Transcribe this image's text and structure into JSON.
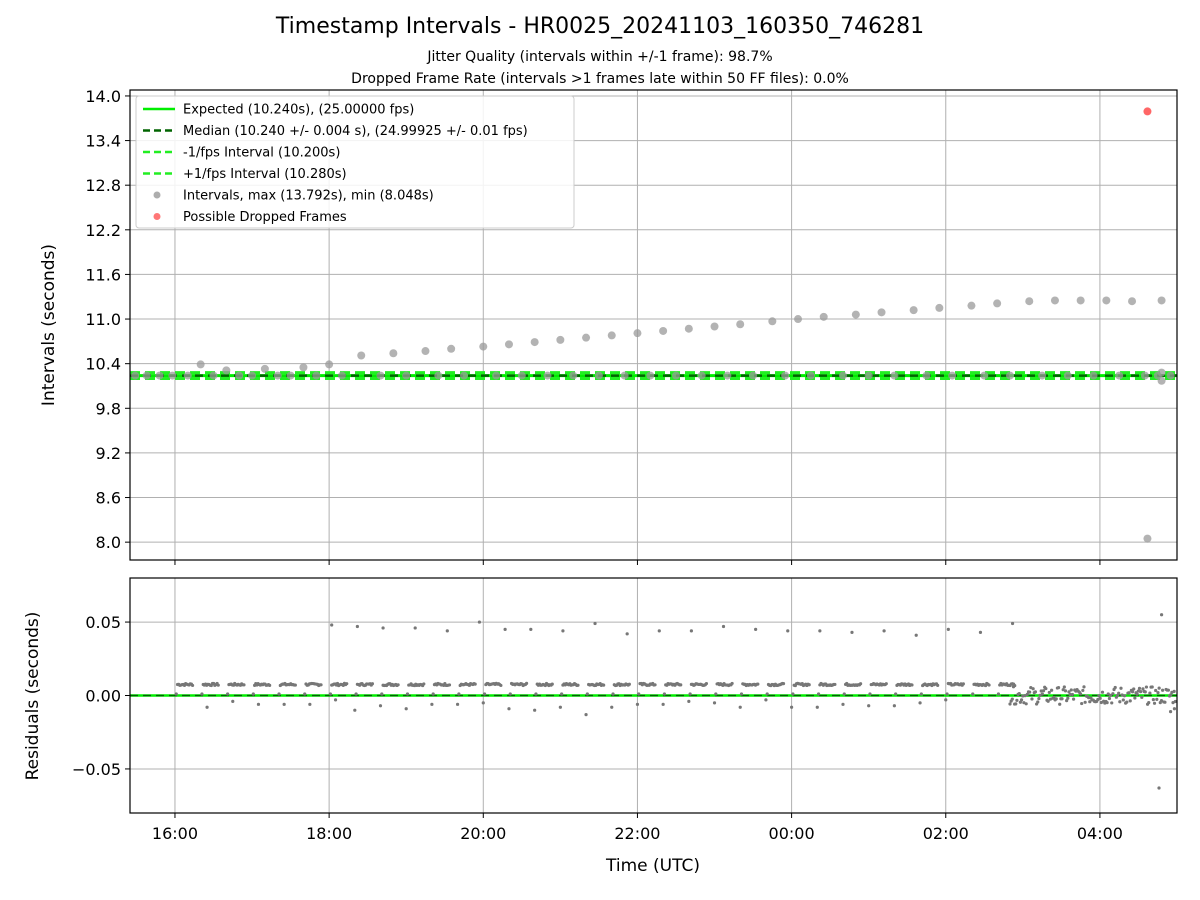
{
  "title": "Timestamp Intervals - HR0025_20241103_160350_746281",
  "subtitle_1": "Jitter Quality (intervals within +/-1 frame): 98.7%",
  "subtitle_2": "Dropped Frame Rate (intervals >1 frames late within 50 FF files): 0.0%",
  "colors": {
    "expected": "#00ee00",
    "median": "#006400",
    "interval_bounds": "#22ee22",
    "intervals": "#999999",
    "dropped": "#ff5555",
    "residuals": "#777777",
    "grid": "#b0b0b0"
  },
  "chart_data": [
    {
      "type": "scatter",
      "panel": "top",
      "ylabel": "Intervals (seconds)",
      "xlabel": "",
      "x_is_time_utc": true,
      "xlim": [
        "15:25",
        "05:00"
      ],
      "ylim": [
        7.76,
        14.08
      ],
      "grid": true,
      "legend_placement": "top-left",
      "x_ticks": [
        "16:00",
        "18:00",
        "20:00",
        "22:00",
        "00:00",
        "02:00",
        "04:00"
      ],
      "y_ticks": [
        "8.0",
        "8.6",
        "9.2",
        "9.8",
        "10.4",
        "11.0",
        "11.6",
        "12.2",
        "12.8",
        "13.4",
        "14.0"
      ],
      "legend": [
        "Expected (10.240s), (25.00000 fps)",
        "Median (10.240 +/- 0.004 s), (24.99925 +/- 0.01 fps)",
        "-1/fps Interval (10.200s)",
        "+1/fps Interval (10.280s)",
        "Intervals, max (13.792s), min (8.048s)",
        "Possible Dropped Frames"
      ],
      "series": [
        {
          "name": "Expected (10.240s), (25.00000 fps)",
          "type": "hline",
          "y": 10.24
        },
        {
          "name": "Median (10.240 +/- 0.004 s), (24.99925 +/- 0.01 fps)",
          "type": "hline",
          "y": 10.24
        },
        {
          "name": "-1/fps Interval (10.200s)",
          "type": "hline",
          "y": 10.2
        },
        {
          "name": "+1/fps Interval (10.280s)",
          "type": "hline",
          "y": 10.28
        },
        {
          "name": "Intervals, max (13.792s), min (8.048s)",
          "points": [
            [
              "15:29",
              10.24
            ],
            [
              "15:38",
              10.24
            ],
            [
              "15:48",
              10.24
            ],
            [
              "15:58",
              10.24
            ],
            [
              "16:10",
              10.24
            ],
            [
              "16:20",
              10.39
            ],
            [
              "16:30",
              10.24
            ],
            [
              "16:40",
              10.31
            ],
            [
              "16:50",
              10.24
            ],
            [
              "17:00",
              10.24
            ],
            [
              "17:10",
              10.33
            ],
            [
              "17:20",
              10.24
            ],
            [
              "17:30",
              10.24
            ],
            [
              "17:40",
              10.35
            ],
            [
              "17:50",
              10.24
            ],
            [
              "18:00",
              10.39
            ],
            [
              "18:10",
              10.24
            ],
            [
              "18:25",
              10.51
            ],
            [
              "18:40",
              10.24
            ],
            [
              "18:50",
              10.54
            ],
            [
              "19:00",
              10.24
            ],
            [
              "19:15",
              10.57
            ],
            [
              "19:25",
              10.24
            ],
            [
              "19:35",
              10.6
            ],
            [
              "19:45",
              10.24
            ],
            [
              "20:00",
              10.63
            ],
            [
              "20:10",
              10.24
            ],
            [
              "20:20",
              10.66
            ],
            [
              "20:30",
              10.24
            ],
            [
              "20:40",
              10.69
            ],
            [
              "20:50",
              10.24
            ],
            [
              "21:00",
              10.72
            ],
            [
              "21:10",
              10.24
            ],
            [
              "21:20",
              10.75
            ],
            [
              "21:30",
              10.24
            ],
            [
              "21:40",
              10.78
            ],
            [
              "21:50",
              10.24
            ],
            [
              "22:00",
              10.81
            ],
            [
              "22:10",
              10.24
            ],
            [
              "22:20",
              10.84
            ],
            [
              "22:30",
              10.24
            ],
            [
              "22:40",
              10.87
            ],
            [
              "22:50",
              10.24
            ],
            [
              "23:00",
              10.9
            ],
            [
              "23:10",
              10.24
            ],
            [
              "23:20",
              10.93
            ],
            [
              "23:30",
              10.24
            ],
            [
              "23:45",
              10.97
            ],
            [
              "23:55",
              10.24
            ],
            [
              "00:05",
              11.0
            ],
            [
              "00:15",
              10.24
            ],
            [
              "00:25",
              11.03
            ],
            [
              "00:40",
              10.24
            ],
            [
              "00:50",
              11.06
            ],
            [
              "01:00",
              10.24
            ],
            [
              "01:10",
              11.09
            ],
            [
              "01:20",
              10.24
            ],
            [
              "01:35",
              11.12
            ],
            [
              "01:45",
              10.24
            ],
            [
              "01:55",
              11.15
            ],
            [
              "02:05",
              10.24
            ],
            [
              "02:20",
              11.18
            ],
            [
              "02:30",
              10.24
            ],
            [
              "02:40",
              11.21
            ],
            [
              "02:50",
              10.24
            ],
            [
              "03:05",
              11.24
            ],
            [
              "03:15",
              10.24
            ],
            [
              "03:25",
              11.25
            ],
            [
              "03:35",
              10.24
            ],
            [
              "03:45",
              11.25
            ],
            [
              "03:55",
              10.24
            ],
            [
              "04:05",
              11.25
            ],
            [
              "04:15",
              10.24
            ],
            [
              "04:25",
              11.24
            ],
            [
              "04:35",
              10.24
            ],
            [
              "04:37",
              8.048
            ],
            [
              "04:45",
              10.24
            ],
            [
              "04:48",
              11.25
            ],
            [
              "04:48",
              10.28
            ],
            [
              "04:48",
              10.17
            ],
            [
              "04:55",
              10.24
            ]
          ]
        },
        {
          "name": "Possible Dropped Frames",
          "points": [
            [
              "04:37",
              13.792
            ]
          ]
        }
      ]
    },
    {
      "type": "scatter",
      "panel": "bottom",
      "xlabel": "Time (UTC)",
      "ylabel": "Residuals (seconds)",
      "x_is_time_utc": true,
      "xlim": [
        "15:25",
        "05:00"
      ],
      "ylim": [
        -0.08,
        0.08
      ],
      "grid": true,
      "x_ticks": [
        "16:00",
        "18:00",
        "20:00",
        "22:00",
        "00:00",
        "02:00",
        "04:00"
      ],
      "y_ticks": [
        "0.05",
        "0.00",
        "−0.05"
      ],
      "series": [
        {
          "name": "",
          "type": "hline",
          "y": 0
        },
        {
          "name": "",
          "points": [
            [
              "18:02",
              0.048
            ],
            [
              "18:22",
              0.047
            ],
            [
              "18:42",
              0.046
            ],
            [
              "19:07",
              0.046
            ],
            [
              "19:32",
              0.044
            ],
            [
              "19:57",
              0.05
            ],
            [
              "20:17",
              0.045
            ],
            [
              "20:37",
              0.045
            ],
            [
              "21:02",
              0.044
            ],
            [
              "21:27",
              0.049
            ],
            [
              "21:52",
              0.042
            ],
            [
              "22:17",
              0.044
            ],
            [
              "22:42",
              0.044
            ],
            [
              "23:07",
              0.047
            ],
            [
              "23:32",
              0.045
            ],
            [
              "23:57",
              0.044
            ],
            [
              "00:22",
              0.044
            ],
            [
              "00:47",
              0.043
            ],
            [
              "01:12",
              0.044
            ],
            [
              "01:37",
              0.041
            ],
            [
              "02:02",
              0.045
            ],
            [
              "02:27",
              0.043
            ],
            [
              "02:52",
              0.049
            ],
            [
              "04:48",
              0.055
            ],
            [
              "04:46",
              -0.063
            ],
            [
              "16:25",
              -0.008
            ],
            [
              "16:45",
              -0.004
            ],
            [
              "17:05",
              -0.006
            ],
            [
              "17:25",
              -0.006
            ],
            [
              "17:45",
              -0.006
            ],
            [
              "18:05",
              -0.003
            ],
            [
              "18:20",
              -0.01
            ],
            [
              "18:40",
              -0.007
            ],
            [
              "19:00",
              -0.009
            ],
            [
              "19:20",
              -0.006
            ],
            [
              "19:40",
              -0.006
            ],
            [
              "20:00",
              -0.005
            ],
            [
              "20:20",
              -0.009
            ],
            [
              "20:40",
              -0.01
            ],
            [
              "21:00",
              -0.008
            ],
            [
              "21:20",
              -0.013
            ],
            [
              "21:40",
              -0.008
            ],
            [
              "22:00",
              -0.006
            ],
            [
              "22:20",
              -0.006
            ],
            [
              "22:40",
              -0.004
            ],
            [
              "23:00",
              -0.005
            ],
            [
              "23:20",
              -0.008
            ],
            [
              "23:40",
              -0.003
            ],
            [
              "00:00",
              -0.008
            ],
            [
              "00:20",
              -0.008
            ],
            [
              "00:40",
              -0.006
            ],
            [
              "01:00",
              -0.007
            ],
            [
              "01:20",
              -0.007
            ],
            [
              "01:40",
              -0.005
            ],
            [
              "02:00",
              -0.003
            ],
            [
              "04:55",
              -0.011
            ],
            [
              "04:58",
              -0.009
            ]
          ],
          "clusters_note_free": true
        }
      ]
    }
  ]
}
